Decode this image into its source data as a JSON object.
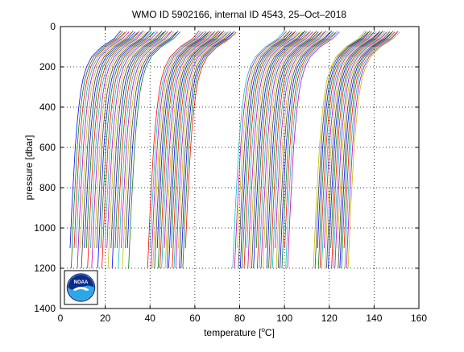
{
  "figure": {
    "logo_text": "NOAA"
  },
  "chart_data": {
    "type": "line",
    "title": "WMO ID 5902166, internal ID 4543, 25–Oct–2018",
    "xlabel_prefix": "temperature [",
    "xlabel_unit_super": "o",
    "xlabel_suffix": "C]",
    "ylabel": "pressure [dbar]",
    "xlim": [
      0,
      160
    ],
    "ylim": [
      0,
      1400
    ],
    "y_reversed": true,
    "xticks": [
      0,
      20,
      40,
      60,
      80,
      100,
      120,
      140,
      160
    ],
    "yticks": [
      0,
      200,
      400,
      600,
      800,
      1000,
      1200,
      1400
    ],
    "grid": true,
    "grid_style": "dotted",
    "legend": "none",
    "note": "waterfall plot: successive temperature profiles offset along x",
    "profile_shape": {
      "pressure": [
        25,
        60,
        100,
        150,
        200,
        260,
        320,
        400,
        500,
        600,
        700,
        800,
        900,
        1000,
        1100,
        1200
      ],
      "relative_temperature": [
        23.5,
        20.5,
        15.0,
        10.5,
        8.2,
        6.6,
        5.6,
        4.7,
        3.8,
        3.1,
        2.6,
        2.1,
        1.6,
        1.2,
        0.8,
        0.4
      ]
    },
    "groups": [
      {
        "first_offset": 3.5,
        "last_offset": 30.0,
        "count": 30,
        "max_pressures": [
          1100,
          1200,
          1100,
          1100,
          1200
        ]
      },
      {
        "first_offset": 38.5,
        "last_offset": 55.0,
        "count": 22,
        "max_pressures": [
          1200,
          1100,
          1200,
          1200
        ]
      },
      {
        "first_offset": 76.5,
        "last_offset": 101.0,
        "count": 30,
        "max_pressures": [
          1200,
          1200,
          1100,
          1200,
          1200
        ]
      },
      {
        "first_offset": 112.5,
        "last_offset": 128.0,
        "count": 22,
        "max_pressures": [
          1200,
          1200,
          1100,
          1200
        ]
      }
    ],
    "series_colors": [
      "#0000ff",
      "#008000",
      "#ff0000",
      "#00bfbf",
      "#bf00bf",
      "#bfbf00",
      "#404040"
    ]
  }
}
